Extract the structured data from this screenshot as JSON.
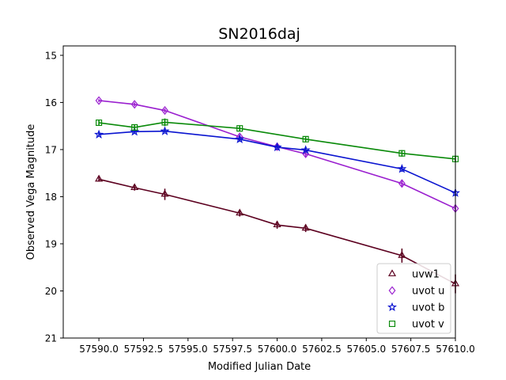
{
  "chart_data": {
    "type": "line",
    "title": "SN2016daj",
    "xlabel": "Modified Julian Date",
    "ylabel": "Observed Vega Magnitude",
    "xlim": [
      57588.0,
      57610.0
    ],
    "ylim": [
      21,
      14.8
    ],
    "x_tick_values": [
      57590.0,
      57592.5,
      57595.0,
      57597.5,
      57600.0,
      57602.5,
      57605.0,
      57607.5,
      57610.0
    ],
    "x_tick_labels": [
      "57590.0",
      "57592.5",
      "57595.0",
      "57597.5",
      "57600.0",
      "57602.5",
      "57605.0",
      "57607.5",
      "57610.0"
    ],
    "y_tick_values": [
      15,
      16,
      17,
      18,
      19,
      20,
      21
    ],
    "y_tick_labels": [
      "15",
      "16",
      "17",
      "18",
      "19",
      "20",
      "21"
    ],
    "grid": false,
    "legend_position": "lower-right",
    "series": [
      {
        "name": "uvw1",
        "marker": "triangle",
        "color": "#5c001f",
        "x": [
          57590.0,
          57592.0,
          57593.7,
          57597.9,
          57600.0,
          57601.6,
          57607.0,
          57610.0
        ],
        "y": [
          17.63,
          17.81,
          17.95,
          18.35,
          18.6,
          18.67,
          19.25,
          19.85
        ],
        "err": [
          0.05,
          0.06,
          0.12,
          0.07,
          0.08,
          0.08,
          0.15,
          0.2
        ]
      },
      {
        "name": "uvot u",
        "marker": "diamond",
        "color": "#9a1fcf",
        "x": [
          57590.0,
          57592.0,
          57593.7,
          57597.9,
          57600.0,
          57601.6,
          57607.0,
          57610.0
        ],
        "y": [
          15.96,
          16.04,
          16.17,
          16.73,
          16.94,
          17.09,
          17.72,
          18.25
        ],
        "err": [
          0.03,
          0.04,
          0.04,
          0.05,
          0.05,
          0.06,
          0.06,
          0.08
        ]
      },
      {
        "name": "uvot b",
        "marker": "star",
        "color": "#0a14d0",
        "x": [
          57590.0,
          57592.0,
          57593.7,
          57597.9,
          57600.0,
          57601.6,
          57607.0,
          57610.0
        ],
        "y": [
          16.68,
          16.62,
          16.61,
          16.78,
          16.95,
          17.01,
          17.41,
          17.92
        ],
        "err": [
          0.04,
          0.04,
          0.04,
          0.05,
          0.05,
          0.05,
          0.06,
          0.07
        ]
      },
      {
        "name": "uvot v",
        "marker": "square",
        "color": "#0a8a0a",
        "x": [
          57590.0,
          57592.0,
          57593.7,
          57597.9,
          57601.6,
          57607.0,
          57610.0
        ],
        "y": [
          16.43,
          16.53,
          16.42,
          16.55,
          16.78,
          17.08,
          17.2
        ],
        "err": [
          0.05,
          0.05,
          0.08,
          0.06,
          0.06,
          0.07,
          0.07
        ]
      }
    ]
  }
}
